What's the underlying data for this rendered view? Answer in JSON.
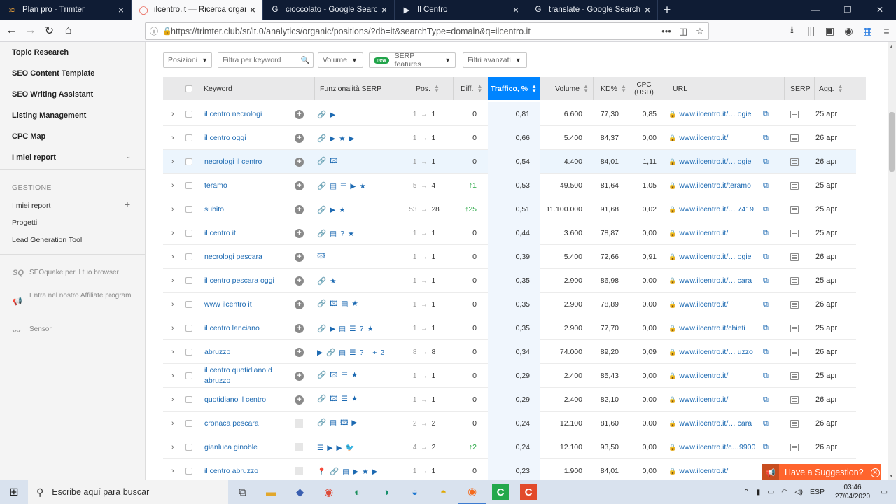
{
  "browser": {
    "tabs": [
      {
        "title": "Plan pro - Trimter",
        "active": false,
        "icon": "trimter-icon"
      },
      {
        "title": "ilcentro.it — Ricerca organica |",
        "active": true,
        "icon": "semrush-icon"
      },
      {
        "title": "cioccolato - Google Search",
        "active": false,
        "icon": "google-icon"
      },
      {
        "title": "Il Centro",
        "active": false,
        "icon": "ilcentro-icon"
      },
      {
        "title": "translate - Google Search",
        "active": false,
        "icon": "google-icon"
      }
    ],
    "url": "https://trimter.club/sr/it.0/analytics/organic/positions/?db=it&searchType=domain&q=ilcentro.it"
  },
  "sidebar": {
    "items": [
      "Topic Research",
      "SEO Content Template",
      "SEO Writing Assistant",
      "Listing Management",
      "CPC Map",
      "I miei report"
    ],
    "section": "GESTIONE",
    "sub": [
      "I miei report",
      "Progetti",
      "Lead Generation Tool"
    ],
    "extra": [
      {
        "icon": "SQ",
        "text": "SEOquake per il tuo browser"
      },
      {
        "icon": "📢",
        "text": "Entra nel nostro Affiliate program"
      },
      {
        "icon": "〰",
        "text": "Sensor"
      }
    ]
  },
  "filters": {
    "positions": "Posizioni",
    "keyword_placeholder": "Filtra per keyword",
    "volume": "Volume",
    "new_badge": "new",
    "serp": "SERP features",
    "advanced": "Filtri avanzati"
  },
  "table": {
    "headers": {
      "keyword": "Keyword",
      "features": "Funzionalità SERP",
      "pos": "Pos.",
      "diff": "Diff.",
      "traffic": "Traffico, %",
      "volume": "Volume",
      "kd": "KD%",
      "cpc": "CPC (USD)",
      "url": "URL",
      "serp": "SERP",
      "updated": "Agg."
    },
    "rows": [
      {
        "kw": "il centro necrologi",
        "plus": true,
        "feat": "🔗▶",
        "from": "1",
        "to": "1",
        "diff": "0",
        "traffic": "0,81",
        "volume": "6.600",
        "kd": "77,30",
        "cpc": "0,85",
        "url": "www.ilcentro.it/… ogie",
        "date": "25 apr"
      },
      {
        "kw": "il centro oggi",
        "plus": true,
        "feat": "🔗▶★▶",
        "from": "1",
        "to": "1",
        "diff": "0",
        "traffic": "0,66",
        "volume": "5.400",
        "kd": "84,37",
        "cpc": "0,00",
        "url": "www.ilcentro.it/",
        "date": "26 apr"
      },
      {
        "kw": "necrologi il centro",
        "plus": true,
        "feat": "🔗🖾",
        "from": "1",
        "to": "1",
        "diff": "0",
        "traffic": "0,54",
        "volume": "4.400",
        "kd": "84,01",
        "cpc": "1,11",
        "url": "www.ilcentro.it/… ogie",
        "date": "26 apr"
      },
      {
        "kw": "teramo",
        "plus": true,
        "feat": "🔗▤☰▶★",
        "from": "5",
        "to": "4",
        "diff": "↑1",
        "traffic": "0,53",
        "volume": "49.500",
        "kd": "81,64",
        "cpc": "1,05",
        "url": "www.ilcentro.it/teramo",
        "date": "25 apr"
      },
      {
        "kw": "subito",
        "plus": true,
        "feat": "🔗▶★",
        "from": "53",
        "to": "28",
        "diff": "↑25",
        "traffic": "0,51",
        "volume": "11.100.000",
        "kd": "91,68",
        "cpc": "0,02",
        "url": "www.ilcentro.it/… 7419",
        "date": "25 apr"
      },
      {
        "kw": "il centro it",
        "plus": true,
        "feat": "🔗▤?★",
        "from": "1",
        "to": "1",
        "diff": "0",
        "traffic": "0,44",
        "volume": "3.600",
        "kd": "78,87",
        "cpc": "0,00",
        "url": "www.ilcentro.it/",
        "date": "25 apr"
      },
      {
        "kw": "necrologi pescara",
        "plus": true,
        "feat": "🖾",
        "from": "1",
        "to": "1",
        "diff": "0",
        "traffic": "0,39",
        "volume": "5.400",
        "kd": "72,66",
        "cpc": "0,91",
        "url": "www.ilcentro.it/… ogie",
        "date": "26 apr"
      },
      {
        "kw": "il centro pescara oggi",
        "plus": true,
        "feat": "🔗★",
        "from": "1",
        "to": "1",
        "diff": "0",
        "traffic": "0,35",
        "volume": "2.900",
        "kd": "86,98",
        "cpc": "0,00",
        "url": "www.ilcentro.it/… cara",
        "date": "25 apr"
      },
      {
        "kw": "www ilcentro it",
        "plus": true,
        "feat": "🔗🖾▤★",
        "from": "1",
        "to": "1",
        "diff": "0",
        "traffic": "0,35",
        "volume": "2.900",
        "kd": "78,89",
        "cpc": "0,00",
        "url": "www.ilcentro.it/",
        "date": "26 apr"
      },
      {
        "kw": "il centro lanciano",
        "plus": true,
        "feat": "🔗▶▤☰?★",
        "from": "1",
        "to": "1",
        "diff": "0",
        "traffic": "0,35",
        "volume": "2.900",
        "kd": "77,70",
        "cpc": "0,00",
        "url": "www.ilcentro.it/chieti",
        "date": "25 apr"
      },
      {
        "kw": "abruzzo",
        "plus": true,
        "feat": "▶🔗▤☰? +2",
        "from": "8",
        "to": "8",
        "diff": "0",
        "traffic": "0,34",
        "volume": "74.000",
        "kd": "89,20",
        "cpc": "0,09",
        "url": "www.ilcentro.it/… uzzo",
        "date": "26 apr"
      },
      {
        "kw": "il centro quotidiano d abruzzo",
        "plus": true,
        "feat": "🔗🖾☰★",
        "from": "1",
        "to": "1",
        "diff": "0",
        "traffic": "0,29",
        "volume": "2.400",
        "kd": "85,43",
        "cpc": "0,00",
        "url": "www.ilcentro.it/",
        "date": "25 apr"
      },
      {
        "kw": "quotidiano il centro",
        "plus": true,
        "feat": "🔗🖾☰★",
        "from": "1",
        "to": "1",
        "diff": "0",
        "traffic": "0,29",
        "volume": "2.400",
        "kd": "82,10",
        "cpc": "0,00",
        "url": "www.ilcentro.it/",
        "date": "26 apr"
      },
      {
        "kw": "cronaca pescara",
        "plus": false,
        "feat": "🔗▤🖾▶",
        "from": "2",
        "to": "2",
        "diff": "0",
        "traffic": "0,24",
        "volume": "12.100",
        "kd": "81,60",
        "cpc": "0,00",
        "url": "www.ilcentro.it/… cara",
        "date": "26 apr"
      },
      {
        "kw": "gianluca ginoble",
        "plus": false,
        "feat": "☰▶▶🐦",
        "from": "4",
        "to": "2",
        "diff": "↑2",
        "traffic": "0,24",
        "volume": "12.100",
        "kd": "93,50",
        "cpc": "0,00",
        "url": "www.ilcentro.it/c…9900",
        "date": "26 apr"
      },
      {
        "kw": "il centro abruzzo",
        "plus": false,
        "feat": "📍🔗▤▶★▶",
        "from": "1",
        "to": "1",
        "diff": "0",
        "traffic": "0,23",
        "volume": "1.900",
        "kd": "84,01",
        "cpc": "0,00",
        "url": "www.ilcentro.it/",
        "date": "25 apr"
      }
    ]
  },
  "suggest": {
    "label": "Have a Suggestion?"
  },
  "taskbar": {
    "search": "Escribe aquí para buscar",
    "lang": "ESP",
    "time": "03:46",
    "date": "27/04/2020"
  }
}
